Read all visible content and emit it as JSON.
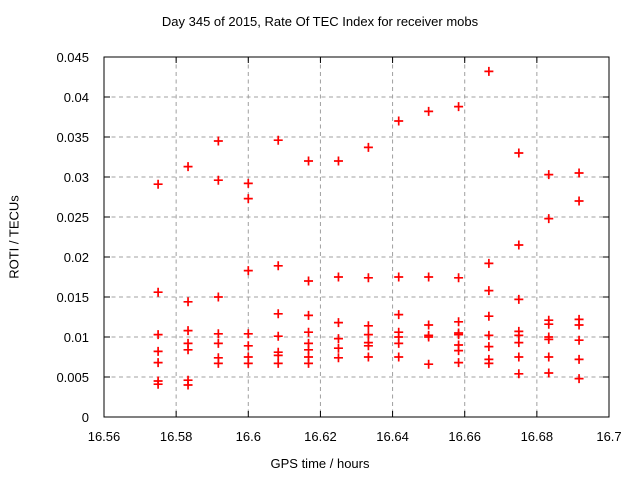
{
  "window": {
    "background": "#ffffff"
  },
  "chart_data": {
    "type": "scatter",
    "title": "Day 345 of 2015, Rate Of TEC Index for receiver mobs",
    "xlabel": "GPS time / hours",
    "ylabel": "ROTI / TECUs",
    "xlim": [
      16.56,
      16.7
    ],
    "ylim": [
      0,
      0.045
    ],
    "xticks": [
      16.56,
      16.58,
      16.6,
      16.62,
      16.64,
      16.66,
      16.68,
      16.7
    ],
    "xtick_labels": [
      "16.56",
      "16.58",
      "16.6",
      "16.62",
      "16.64",
      "16.66",
      "16.68",
      "16.7"
    ],
    "yticks": [
      0,
      0.005,
      0.01,
      0.015,
      0.02,
      0.025,
      0.03,
      0.035,
      0.04,
      0.045
    ],
    "ytick_labels": [
      "0",
      "0.005",
      "0.01",
      "0.015",
      "0.02",
      "0.025",
      "0.03",
      "0.035",
      "0.04",
      "0.045"
    ],
    "grid": true,
    "grid_style": "dashed",
    "legend": "none",
    "marker": "plus",
    "colors": {
      "marker": "#ff0000",
      "grid": "#a0a0a0",
      "border": "#000000",
      "text": "#000000",
      "background": "#ffffff"
    },
    "series": [
      {
        "name": "ROTI",
        "points": [
          [
            16.575,
            0.0291
          ],
          [
            16.575,
            0.0156
          ],
          [
            16.575,
            0.0103
          ],
          [
            16.575,
            0.0082
          ],
          [
            16.575,
            0.0068
          ],
          [
            16.575,
            0.0045
          ],
          [
            16.575,
            0.0041
          ],
          [
            16.5833,
            0.0313
          ],
          [
            16.5833,
            0.0144
          ],
          [
            16.5833,
            0.0108
          ],
          [
            16.5833,
            0.0092
          ],
          [
            16.5833,
            0.0084
          ],
          [
            16.5833,
            0.0046
          ],
          [
            16.5833,
            0.004
          ],
          [
            16.5917,
            0.0345
          ],
          [
            16.5917,
            0.0296
          ],
          [
            16.5917,
            0.015
          ],
          [
            16.5917,
            0.0104
          ],
          [
            16.5917,
            0.0092
          ],
          [
            16.5917,
            0.0074
          ],
          [
            16.5917,
            0.0067
          ],
          [
            16.6,
            0.0292
          ],
          [
            16.6,
            0.0273
          ],
          [
            16.6,
            0.0183
          ],
          [
            16.6,
            0.0104
          ],
          [
            16.6,
            0.0089
          ],
          [
            16.6,
            0.0075
          ],
          [
            16.6,
            0.0067
          ],
          [
            16.6083,
            0.0346
          ],
          [
            16.6083,
            0.0189
          ],
          [
            16.6083,
            0.0129
          ],
          [
            16.6083,
            0.0101
          ],
          [
            16.6083,
            0.0081
          ],
          [
            16.6083,
            0.0077
          ],
          [
            16.6083,
            0.0067
          ],
          [
            16.6167,
            0.032
          ],
          [
            16.6167,
            0.017
          ],
          [
            16.6167,
            0.0127
          ],
          [
            16.6167,
            0.0106
          ],
          [
            16.6167,
            0.0092
          ],
          [
            16.6167,
            0.0084
          ],
          [
            16.6167,
            0.0075
          ],
          [
            16.6167,
            0.0067
          ],
          [
            16.625,
            0.032
          ],
          [
            16.625,
            0.0175
          ],
          [
            16.625,
            0.0118
          ],
          [
            16.625,
            0.0098
          ],
          [
            16.625,
            0.0086
          ],
          [
            16.625,
            0.0074
          ],
          [
            16.6333,
            0.0337
          ],
          [
            16.6333,
            0.0174
          ],
          [
            16.6333,
            0.0114
          ],
          [
            16.6333,
            0.0103
          ],
          [
            16.6333,
            0.0093
          ],
          [
            16.6333,
            0.0089
          ],
          [
            16.6333,
            0.0075
          ],
          [
            16.6417,
            0.037
          ],
          [
            16.6417,
            0.0175
          ],
          [
            16.6417,
            0.0128
          ],
          [
            16.6417,
            0.0106
          ],
          [
            16.6417,
            0.01
          ],
          [
            16.6417,
            0.0092
          ],
          [
            16.6417,
            0.0075
          ],
          [
            16.65,
            0.0382
          ],
          [
            16.65,
            0.0175
          ],
          [
            16.65,
            0.0115
          ],
          [
            16.65,
            0.0102
          ],
          [
            16.65,
            0.01
          ],
          [
            16.65,
            0.0066
          ],
          [
            16.6583,
            0.0388
          ],
          [
            16.6583,
            0.0174
          ],
          [
            16.6583,
            0.0119
          ],
          [
            16.6583,
            0.0105
          ],
          [
            16.6583,
            0.0103
          ],
          [
            16.6583,
            0.009
          ],
          [
            16.6583,
            0.0083
          ],
          [
            16.6583,
            0.0068
          ],
          [
            16.6667,
            0.0432
          ],
          [
            16.6667,
            0.0192
          ],
          [
            16.6667,
            0.0158
          ],
          [
            16.6667,
            0.0126
          ],
          [
            16.6667,
            0.0102
          ],
          [
            16.6667,
            0.0088
          ],
          [
            16.6667,
            0.0072
          ],
          [
            16.6667,
            0.0067
          ],
          [
            16.675,
            0.033
          ],
          [
            16.675,
            0.0215
          ],
          [
            16.675,
            0.0147
          ],
          [
            16.675,
            0.0107
          ],
          [
            16.675,
            0.0102
          ],
          [
            16.675,
            0.0093
          ],
          [
            16.675,
            0.0075
          ],
          [
            16.675,
            0.0054
          ],
          [
            16.6833,
            0.0303
          ],
          [
            16.6833,
            0.0248
          ],
          [
            16.6833,
            0.0121
          ],
          [
            16.6833,
            0.0116
          ],
          [
            16.6833,
            0.01
          ],
          [
            16.6833,
            0.0097
          ],
          [
            16.6833,
            0.0075
          ],
          [
            16.6833,
            0.0055
          ],
          [
            16.6917,
            0.0305
          ],
          [
            16.6917,
            0.027
          ],
          [
            16.6917,
            0.0122
          ],
          [
            16.6917,
            0.0115
          ],
          [
            16.6917,
            0.0096
          ],
          [
            16.6917,
            0.0072
          ],
          [
            16.6917,
            0.0048
          ]
        ]
      }
    ]
  }
}
